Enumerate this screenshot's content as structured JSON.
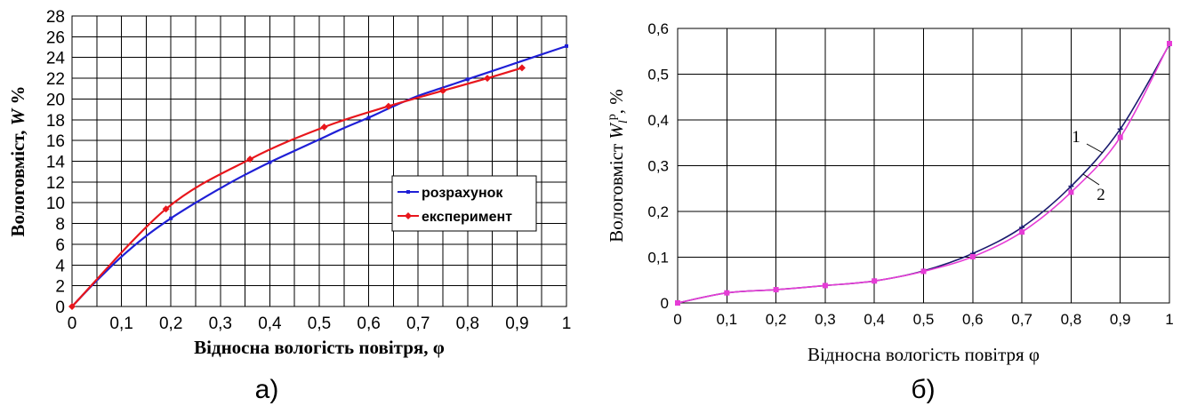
{
  "chart_data": [
    {
      "type": "line",
      "panel_label": "а)",
      "xlabel": "Відносна вологість повітря, φ",
      "ylabel": "Вологовміст, W %",
      "ylabel_main": "Вологовміст, ",
      "ylabel_italic": "W",
      "ylabel_unit": " %",
      "xlim": [
        0,
        1
      ],
      "ylim": [
        0,
        28
      ],
      "x_ticks": [
        0,
        0.1,
        0.2,
        0.3,
        0.4,
        0.5,
        0.6,
        0.7,
        0.8,
        0.9,
        1
      ],
      "x_tick_labels": [
        "0",
        "0,1",
        "0,2",
        "0,3",
        "0,4",
        "0,5",
        "0,6",
        "0,7",
        "0,8",
        "0,9",
        "1"
      ],
      "y_ticks": [
        0,
        2,
        4,
        6,
        8,
        10,
        12,
        14,
        16,
        18,
        20,
        22,
        24,
        26,
        28
      ],
      "y_tick_labels": [
        "0",
        "2",
        "4",
        "6",
        "8",
        "10",
        "12",
        "14",
        "16",
        "18",
        "20",
        "22",
        "24",
        "26",
        "28"
      ],
      "x_grid_step": 0.05,
      "grid": true,
      "legend_position": "center-right",
      "series": [
        {
          "name": "розрахунок",
          "color": "#1f1fd6",
          "x": [
            0,
            0.05,
            0.1,
            0.15,
            0.2,
            0.25,
            0.3,
            0.35,
            0.4,
            0.45,
            0.5,
            0.55,
            0.6,
            0.65,
            0.7,
            0.75,
            0.8,
            0.85,
            0.9,
            0.95,
            1.0
          ],
          "y": [
            0,
            2.5,
            4.8,
            6.8,
            8.5,
            10.0,
            11.4,
            12.7,
            13.9,
            15.0,
            16.1,
            17.2,
            18.2,
            19.3,
            20.3,
            21.1,
            21.9,
            22.7,
            23.5,
            24.3,
            25.1
          ],
          "markers_x": [
            0,
            0.2,
            0.4,
            0.6,
            0.8,
            1.0
          ]
        },
        {
          "name": "експеримент",
          "color": "#e8161c",
          "x": [
            0,
            0.19,
            0.36,
            0.51,
            0.64,
            0.75,
            0.84,
            0.91
          ],
          "y": [
            0,
            9.4,
            14.2,
            17.3,
            19.3,
            20.8,
            22.0,
            23.0
          ],
          "markers_x": [
            0,
            0.19,
            0.36,
            0.51,
            0.64,
            0.75,
            0.84,
            0.91
          ]
        }
      ]
    },
    {
      "type": "line",
      "panel_label": "б)",
      "xlabel": "Відносна вологість повітря φ",
      "ylabel": "Вологовміст W_l^p, %",
      "ylabel_main": "Вологовміст ",
      "ylabel_italic": "W",
      "ylabel_sub": "l",
      "ylabel_sup": "р",
      "ylabel_unit": ", %",
      "xlim": [
        0,
        1
      ],
      "ylim": [
        0,
        0.6
      ],
      "x_ticks": [
        0,
        0.1,
        0.2,
        0.3,
        0.4,
        0.5,
        0.6,
        0.7,
        0.8,
        0.9,
        1
      ],
      "x_tick_labels": [
        "0",
        "0,1",
        "0,2",
        "0,3",
        "0,4",
        "0,5",
        "0,6",
        "0,7",
        "0,8",
        "0,9",
        "1"
      ],
      "y_ticks": [
        0,
        0.1,
        0.2,
        0.3,
        0.4,
        0.5,
        0.6
      ],
      "y_tick_labels": [
        "0",
        "0,1",
        "0,2",
        "0,3",
        "0,4",
        "0,5",
        "0,6"
      ],
      "grid": true,
      "series": [
        {
          "name": "1",
          "color": "#1a1a6e",
          "x": [
            0,
            0.1,
            0.2,
            0.3,
            0.4,
            0.5,
            0.6,
            0.7,
            0.8,
            0.9,
            1.0
          ],
          "y": [
            0,
            0.022,
            0.029,
            0.038,
            0.048,
            0.07,
            0.108,
            0.165,
            0.255,
            0.38,
            0.565
          ],
          "markers_x": [
            0,
            0.1,
            0.2,
            0.3,
            0.4,
            0.5,
            0.6,
            0.7,
            0.8,
            0.9,
            1.0
          ]
        },
        {
          "name": "2",
          "color": "#e63cd6",
          "x": [
            0,
            0.1,
            0.2,
            0.3,
            0.4,
            0.5,
            0.6,
            0.7,
            0.8,
            0.9,
            1.0
          ],
          "y": [
            0,
            0.022,
            0.029,
            0.038,
            0.048,
            0.069,
            0.101,
            0.155,
            0.242,
            0.362,
            0.567
          ],
          "markers_x": [
            0,
            0.1,
            0.2,
            0.3,
            0.4,
            0.5,
            0.6,
            0.7,
            0.8,
            0.9,
            1.0
          ]
        }
      ]
    }
  ]
}
